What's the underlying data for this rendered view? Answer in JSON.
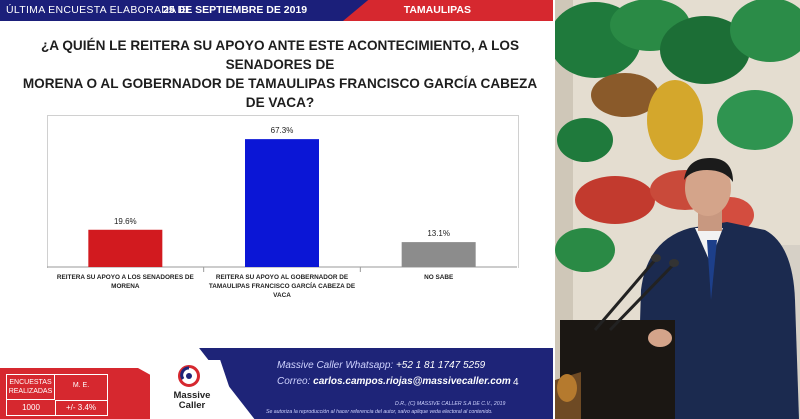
{
  "header": {
    "lead": "ÚLTIMA ENCUESTA ELABORADA EL",
    "date": "25 DE SEPTIEMBRE DE 2019",
    "region": "TAMAULIPAS"
  },
  "question": {
    "line1": "¿A QUIÉN LE REITERA SU APOYO ANTE ESTE ACONTECIMIENTO, A LOS SENADORES DE",
    "line2": "MORENA O AL GOBERNADOR DE TAMAULIPAS FRANCISCO GARCÍA CABEZA DE VACA?"
  },
  "chart_data": {
    "type": "bar",
    "categories": [
      "REITERA SU APOYO A LOS SENADORES DE MORENA",
      "REITERA SU APOYO AL GOBERNADOR DE TAMAULIPAS FRANCISCO GARCÍA CABEZA DE VACA",
      "NO SABE"
    ],
    "category_lines": [
      [
        "REITERA SU APOYO A LOS SENADORES DE",
        "MORENA"
      ],
      [
        "REITERA SU APOYO AL GOBERNADOR DE",
        "TAMAULIPAS FRANCISCO GARCÍA CABEZA DE",
        "VACA"
      ],
      [
        "NO SABE"
      ]
    ],
    "values": [
      19.6,
      67.3,
      13.1
    ],
    "labels": [
      "19.6%",
      "67.3%",
      "13.1%"
    ],
    "colors": [
      "#d21a1f",
      "#0b16d6",
      "#8c8c8c"
    ],
    "ylim": [
      0,
      80
    ],
    "grid": false
  },
  "stats": {
    "label_n": "ENCUESTAS REALIZADAS",
    "label_me": "M. E.",
    "n": "1000",
    "me": "+/- 3.4%"
  },
  "footer": {
    "brand_line1": "Massive",
    "brand_line2": "Caller",
    "whatsapp_label": "Massive Caller Whatsapp:",
    "whatsapp_value": "+52 1 81 1747 5259",
    "email_label": "Correo:",
    "email_value": "carlos.campos.riojas@massivecaller.com",
    "page_number": "4",
    "legal_1": "D.R., (C) MASSIVE CALLER S.A DE C.V., 2019",
    "legal_2": "Se autoriza la reproducción al hacer referencia del autor, salvo aplique veda electoral al contenido."
  },
  "colors": {
    "navy": "#1e2478",
    "red": "#d6282f"
  }
}
